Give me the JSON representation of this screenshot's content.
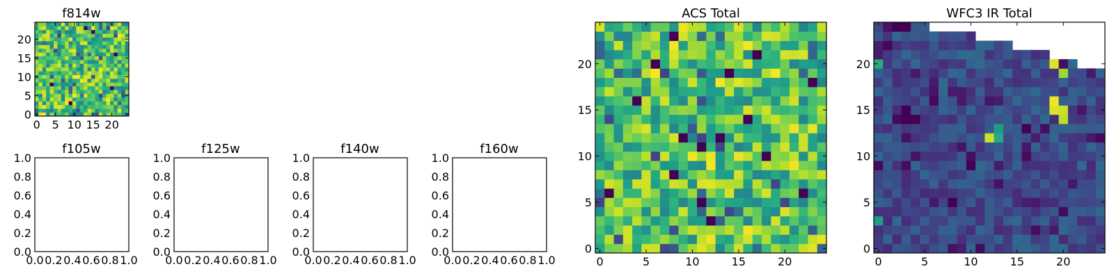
{
  "chart_data": [
    {
      "type": "heatmap",
      "title": "f814w",
      "xlabel": "",
      "ylabel": "",
      "xlim": [
        -0.5,
        24.5
      ],
      "ylim": [
        -0.5,
        24.5
      ],
      "xticks": [
        "0",
        "5",
        "10",
        "15",
        "20"
      ],
      "yticks": [
        "0",
        "5",
        "10",
        "15",
        "20"
      ],
      "grid_size": [
        25,
        25
      ],
      "colormap": "viridis",
      "value_range": [
        0,
        1
      ],
      "pattern": "noise"
    },
    {
      "type": "empty",
      "title": "f105w",
      "xlim": [
        0,
        1
      ],
      "ylim": [
        0,
        1
      ],
      "xticks": [
        "0.0",
        "0.2",
        "0.4",
        "0.6",
        "0.8",
        "1.0"
      ],
      "yticks": [
        "0.0",
        "0.2",
        "0.4",
        "0.6",
        "0.8",
        "1.0"
      ]
    },
    {
      "type": "empty",
      "title": "f125w",
      "xlim": [
        0,
        1
      ],
      "ylim": [
        0,
        1
      ],
      "xticks": [
        "0.0",
        "0.2",
        "0.4",
        "0.6",
        "0.8",
        "1.0"
      ],
      "yticks": [
        "0.0",
        "0.2",
        "0.4",
        "0.6",
        "0.8",
        "1.0"
      ]
    },
    {
      "type": "empty",
      "title": "f140w",
      "xlim": [
        0,
        1
      ],
      "ylim": [
        0,
        1
      ],
      "xticks": [
        "0.0",
        "0.2",
        "0.4",
        "0.6",
        "0.8",
        "1.0"
      ],
      "yticks": [
        "0.0",
        "0.2",
        "0.4",
        "0.6",
        "0.8",
        "1.0"
      ]
    },
    {
      "type": "empty",
      "title": "f160w",
      "xlim": [
        0,
        1
      ],
      "ylim": [
        0,
        1
      ],
      "xticks": [
        "0.0",
        "0.2",
        "0.4",
        "0.6",
        "0.8",
        "1.0"
      ],
      "yticks": [
        "0.0",
        "0.2",
        "0.4",
        "0.6",
        "0.8",
        "1.0"
      ]
    },
    {
      "type": "heatmap",
      "title": "ACS Total",
      "xlim": [
        -0.5,
        24.5
      ],
      "ylim": [
        -0.5,
        24.5
      ],
      "xticks": [
        "0",
        "5",
        "10",
        "15",
        "20"
      ],
      "yticks": [
        "0",
        "5",
        "10",
        "15",
        "20"
      ],
      "grid_size": [
        25,
        25
      ],
      "colormap": "viridis",
      "value_range": [
        0,
        1
      ],
      "pattern": "noise"
    },
    {
      "type": "heatmap",
      "title": "WFC3 IR Total",
      "xlim": [
        -0.5,
        24.5
      ],
      "ylim": [
        -0.5,
        24.5
      ],
      "xticks": [
        "0",
        "5",
        "10",
        "15",
        "20"
      ],
      "yticks": [
        "0",
        "5",
        "10",
        "15",
        "20"
      ],
      "grid_size": [
        25,
        25
      ],
      "colormap": "viridis",
      "value_range": [
        0,
        1
      ],
      "pattern": "ir",
      "bright_pixels": [
        {
          "col": 19,
          "row": 20,
          "value": 0.95
        },
        {
          "col": 20,
          "row": 19,
          "value": 0.85
        },
        {
          "col": 19,
          "row": 16,
          "value": 0.98
        },
        {
          "col": 19,
          "row": 15,
          "value": 0.95
        },
        {
          "col": 20,
          "row": 15,
          "value": 0.92
        },
        {
          "col": 20,
          "row": 14,
          "value": 0.9
        },
        {
          "col": 12,
          "row": 12,
          "value": 0.92
        },
        {
          "col": 13,
          "row": 12,
          "value": 0.6
        },
        {
          "col": 13,
          "row": 13,
          "value": 0.55
        },
        {
          "col": 0,
          "row": 20,
          "value": 0.6
        },
        {
          "col": 0,
          "row": 3,
          "value": 0.55
        }
      ],
      "dark_pixels": [
        {
          "col": 2,
          "row": 24
        },
        {
          "col": 3,
          "row": 24
        },
        {
          "col": 3,
          "row": 15
        },
        {
          "col": 3,
          "row": 14
        },
        {
          "col": 4,
          "row": 14
        },
        {
          "col": 10,
          "row": 9
        },
        {
          "col": 8,
          "row": 5
        },
        {
          "col": 16,
          "row": 13
        }
      ],
      "white_region_column_tops": [
        25,
        25,
        25,
        25,
        25,
        25,
        24,
        24,
        24,
        24,
        24,
        23,
        23,
        23,
        23,
        22,
        22,
        22,
        22,
        21,
        21,
        21,
        20,
        20,
        20
      ]
    }
  ]
}
